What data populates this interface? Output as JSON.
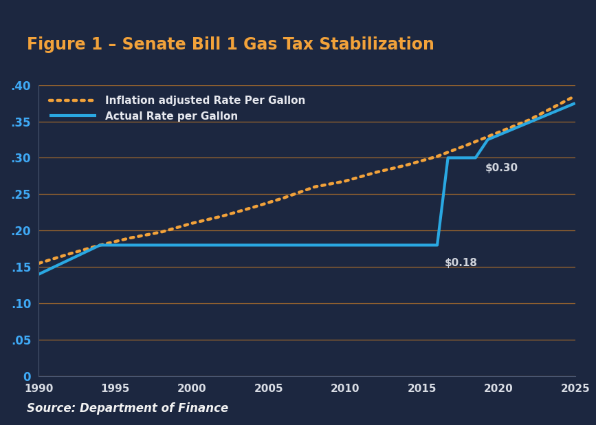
{
  "chart_data": {
    "type": "line",
    "title": "Figure 1 – Senate Bill 1 Gas Tax Stabilization",
    "source": "Source: Department of Finance",
    "series": [
      {
        "name": "Inflation adjusted Rate Per Gallon",
        "color": "#f2a23a",
        "line_style": "dotted",
        "x": [
          1990,
          1992,
          1994,
          1996,
          1998,
          2000,
          2002,
          2004,
          2006,
          2008,
          2010,
          2012,
          2014,
          2016,
          2018,
          2020,
          2022,
          2025
        ],
        "values": [
          0.155,
          0.168,
          0.18,
          0.19,
          0.198,
          0.21,
          0.22,
          0.232,
          0.245,
          0.26,
          0.268,
          0.28,
          0.29,
          0.302,
          0.318,
          0.335,
          0.352,
          0.385
        ]
      },
      {
        "name": "Actual Rate per Gallon",
        "color": "#2aa8e2",
        "line_style": "solid",
        "x": [
          1990,
          1994,
          2016,
          2016.7,
          2018.5,
          2019.3,
          2025
        ],
        "values": [
          0.14,
          0.18,
          0.18,
          0.3,
          0.3,
          0.325,
          0.375
        ]
      }
    ],
    "annotations": [
      {
        "text": "$0.18",
        "x": 2016,
        "y": 0.18
      },
      {
        "text": "$0.30",
        "x": 2018.5,
        "y": 0.3
      }
    ],
    "xlim": [
      1990,
      2025
    ],
    "xticks": [
      1990,
      1995,
      2000,
      2005,
      2010,
      2015,
      2020,
      2025
    ],
    "ylim": [
      0,
      0.4
    ],
    "yticks": [
      {
        "value": 0,
        "label": "0"
      },
      {
        "value": 0.05,
        "label": ".05"
      },
      {
        "value": 0.1,
        "label": ".10"
      },
      {
        "value": 0.15,
        "label": ".15"
      },
      {
        "value": 0.2,
        "label": ".20"
      },
      {
        "value": 0.25,
        "label": ".25"
      },
      {
        "value": 0.3,
        "label": ".30"
      },
      {
        "value": 0.35,
        "label": ".35"
      },
      {
        "value": 0.4,
        "label": ".40"
      }
    ],
    "grid": true,
    "legend": "upper left"
  }
}
